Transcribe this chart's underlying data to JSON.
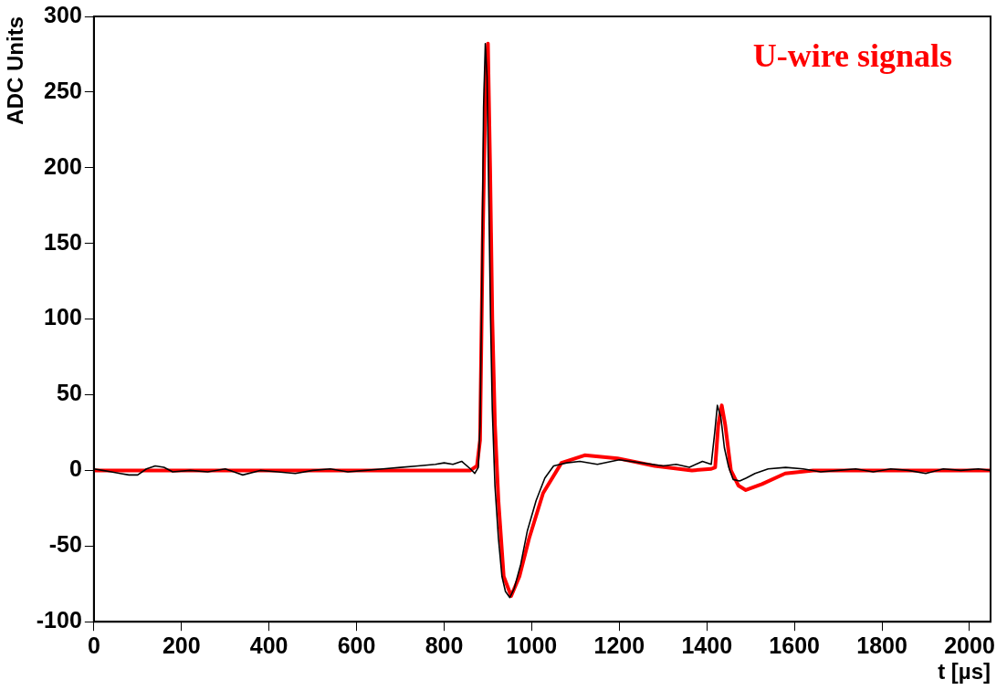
{
  "chart_data": {
    "type": "line",
    "title": "U-wire signals",
    "xlabel": "t [µs]",
    "ylabel": "ADC Units",
    "xlim": [
      0,
      2048
    ],
    "xticks": [
      0,
      200,
      400,
      600,
      800,
      1000,
      1200,
      1400,
      1600,
      1800,
      2000
    ],
    "ylim": [
      -100,
      300
    ],
    "yticks": [
      -100,
      -50,
      0,
      50,
      100,
      150,
      200,
      250,
      300
    ],
    "grid": false,
    "legend": false,
    "marker": "none",
    "line_style": "solid",
    "series": [
      {
        "color": "#000000",
        "x": [
          0,
          20,
          40,
          60,
          80,
          100,
          120,
          140,
          160,
          180,
          220,
          260,
          300,
          340,
          380,
          420,
          460,
          500,
          540,
          580,
          620,
          660,
          700,
          740,
          780,
          800,
          820,
          840,
          860,
          870,
          878,
          882,
          886,
          890,
          894,
          898,
          902,
          906,
          910,
          916,
          924,
          932,
          940,
          950,
          960,
          975,
          990,
          1010,
          1030,
          1050,
          1080,
          1110,
          1150,
          1200,
          1250,
          1300,
          1330,
          1360,
          1390,
          1410,
          1418,
          1424,
          1432,
          1440,
          1450,
          1460,
          1475,
          1490,
          1510,
          1540,
          1580,
          1620,
          1660,
          1700,
          1740,
          1780,
          1820,
          1860,
          1900,
          1940,
          1980,
          2020,
          2048
        ],
        "values": [
          1,
          0,
          -1,
          -2,
          -3,
          -3,
          1,
          3,
          2,
          -1,
          0,
          -1,
          1,
          -3,
          0,
          -1,
          -2,
          0,
          1,
          -1,
          0,
          1,
          2,
          3,
          4,
          5,
          4,
          6,
          1,
          -2,
          2,
          30,
          120,
          240,
          282,
          260,
          180,
          100,
          40,
          -10,
          -45,
          -70,
          -80,
          -84,
          -78,
          -62,
          -40,
          -20,
          -5,
          3,
          5,
          6,
          4,
          7,
          5,
          3,
          4,
          2,
          6,
          4,
          25,
          43,
          35,
          15,
          2,
          -6,
          -7,
          -5,
          -2,
          1,
          2,
          1,
          -1,
          0,
          1,
          -1,
          1,
          0,
          -2,
          1,
          0,
          1,
          0
        ]
      },
      {
        "color": "#ff0000",
        "x": [
          0,
          860,
          875,
          882,
          888,
          895,
          900,
          905,
          910,
          916,
          924,
          936,
          953,
          972,
          994,
          1026,
          1068,
          1121,
          1196,
          1281,
          1366,
          1410,
          1419,
          1426,
          1434,
          1442,
          1455,
          1472,
          1489,
          1526,
          1579,
          1643,
          2048
        ],
        "values": [
          0,
          0,
          3,
          20,
          150,
          260,
          282,
          200,
          100,
          30,
          -20,
          -70,
          -83,
          -70,
          -45,
          -15,
          5,
          10,
          8,
          3,
          0,
          1,
          2,
          30,
          43,
          30,
          0,
          -10,
          -13,
          -9,
          -2,
          0,
          0
        ]
      }
    ]
  }
}
